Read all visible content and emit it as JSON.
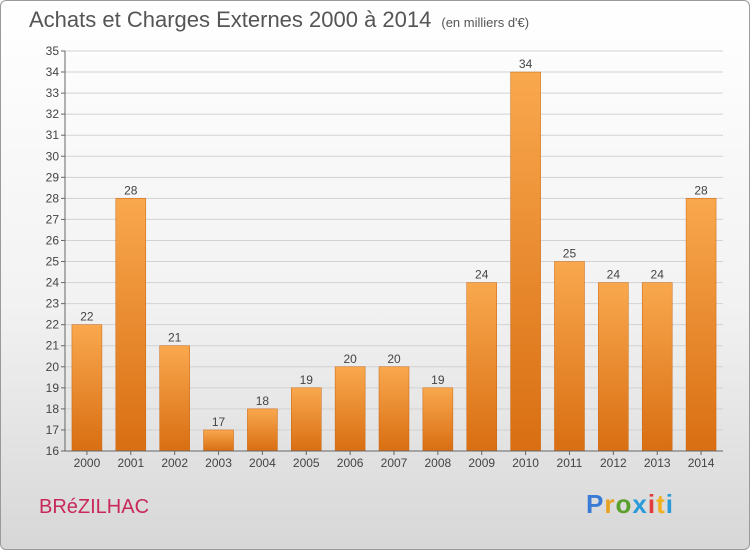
{
  "header": {
    "title": "Achats et Charges Externes 2000 à 2014",
    "unit": "(en milliers d'€)"
  },
  "commune": "BRéZILHAC",
  "logo": {
    "text": "Proxiti",
    "colors": [
      "#3a7bd5",
      "#e8a020",
      "#5aa02c",
      "#2a9bd8",
      "#e03c3c",
      "#f0b020",
      "#2a9bd8"
    ]
  },
  "chart_data": {
    "type": "bar",
    "title": "Achats et Charges Externes 2000 à 2014",
    "subtitle": "(en milliers d'€)",
    "categories": [
      "2000",
      "2001",
      "2002",
      "2003",
      "2004",
      "2005",
      "2006",
      "2007",
      "2008",
      "2009",
      "2010",
      "2011",
      "2012",
      "2013",
      "2014"
    ],
    "values": [
      22,
      28,
      21,
      17,
      18,
      19,
      20,
      20,
      19,
      24,
      34,
      25,
      24,
      24,
      28
    ],
    "ylim": [
      16,
      35
    ],
    "yticks": [
      16,
      17,
      18,
      19,
      20,
      21,
      22,
      23,
      24,
      25,
      26,
      27,
      28,
      29,
      30,
      31,
      32,
      33,
      34,
      35
    ],
    "grid": true,
    "bar_color": "#f0902a"
  }
}
